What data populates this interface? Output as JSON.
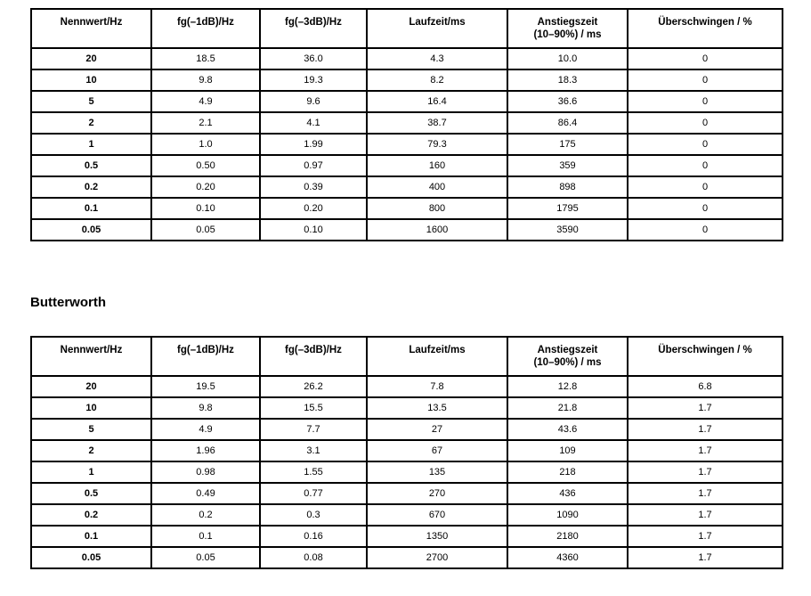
{
  "page": {
    "background_color": "#ffffff",
    "text_color": "#000000",
    "border_color": "#000000"
  },
  "section_title": "Butterworth",
  "tables": [
    {
      "id": "filter-table-top",
      "headers": [
        "Nennwert/Hz",
        "fg(–1dB)/Hz",
        "fg(–3dB)/Hz",
        "Laufzeit/ms",
        "Anstiegszeit\n(10–90%) / ms",
        "Überschwingen / %"
      ],
      "rows": [
        [
          "20",
          "18.5",
          "36.0",
          "4.3",
          "10.0",
          "0"
        ],
        [
          "10",
          "9.8",
          "19.3",
          "8.2",
          "18.3",
          "0"
        ],
        [
          "5",
          "4.9",
          "9.6",
          "16.4",
          "36.6",
          "0"
        ],
        [
          "2",
          "2.1",
          "4.1",
          "38.7",
          "86.4",
          "0"
        ],
        [
          "1",
          "1.0",
          "1.99",
          "79.3",
          "175",
          "0"
        ],
        [
          "0.5",
          "0.50",
          "0.97",
          "160",
          "359",
          "0"
        ],
        [
          "0.2",
          "0.20",
          "0.39",
          "400",
          "898",
          "0"
        ],
        [
          "0.1",
          "0.10",
          "0.20",
          "800",
          "1795",
          "0"
        ],
        [
          "0.05",
          "0.05",
          "0.10",
          "1600",
          "3590",
          "0"
        ]
      ]
    },
    {
      "id": "filter-table-butterworth",
      "title": "Butterworth",
      "headers": [
        "Nennwert/Hz",
        "fg(–1dB)/Hz",
        "fg(–3dB)/Hz",
        "Laufzeit/ms",
        "Anstiegszeit\n(10–90%) / ms",
        "Überschwingen / %"
      ],
      "rows": [
        [
          "20",
          "19.5",
          "26.2",
          "7.8",
          "12.8",
          "6.8"
        ],
        [
          "10",
          "9.8",
          "15.5",
          "13.5",
          "21.8",
          "1.7"
        ],
        [
          "5",
          "4.9",
          "7.7",
          "27",
          "43.6",
          "1.7"
        ],
        [
          "2",
          "1.96",
          "3.1",
          "67",
          "109",
          "1.7"
        ],
        [
          "1",
          "0.98",
          "1.55",
          "135",
          "218",
          "1.7"
        ],
        [
          "0.5",
          "0.49",
          "0.77",
          "270",
          "436",
          "1.7"
        ],
        [
          "0.2",
          "0.2",
          "0.3",
          "670",
          "1090",
          "1.7"
        ],
        [
          "0.1",
          "0.1",
          "0.16",
          "1350",
          "2180",
          "1.7"
        ],
        [
          "0.05",
          "0.05",
          "0.08",
          "2700",
          "4360",
          "1.7"
        ]
      ]
    }
  ]
}
